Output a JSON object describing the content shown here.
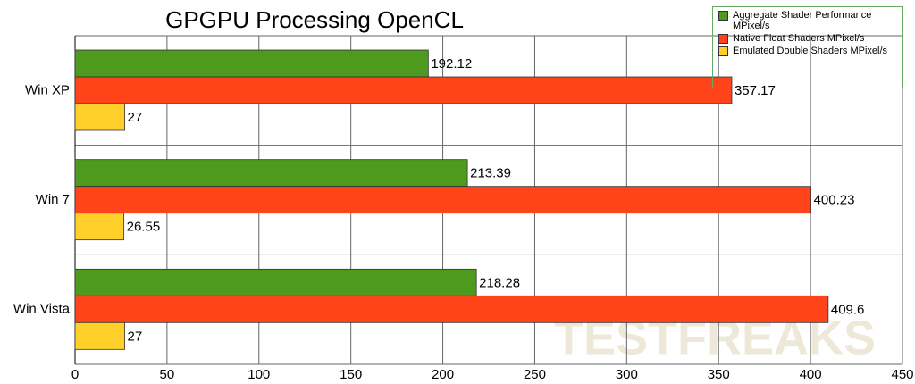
{
  "chart_data": {
    "type": "hbar",
    "title": "GPGPU Processing OpenCL",
    "categories": [
      "Win XP",
      "Win 7",
      "Win Vista"
    ],
    "series": [
      {
        "name": "Aggregate Shader Performance MPixel/s",
        "color": "#4e9a1e",
        "values": [
          192.12,
          213.39,
          218.28
        ]
      },
      {
        "name": "Native Float Shaders MPixel/s",
        "color": "#ff4419",
        "values": [
          357.17,
          400.23,
          409.6
        ]
      },
      {
        "name": "Emulated Double Shaders MPixel/s",
        "color": "#ffd02a",
        "values": [
          27,
          26.55,
          27
        ]
      }
    ],
    "xlim": [
      0,
      450
    ],
    "xticks": [
      0,
      50,
      100,
      150,
      200,
      250,
      300,
      350,
      400,
      450
    ],
    "grid": true,
    "legend": "top-right",
    "watermark": "TESTFREAKS"
  }
}
